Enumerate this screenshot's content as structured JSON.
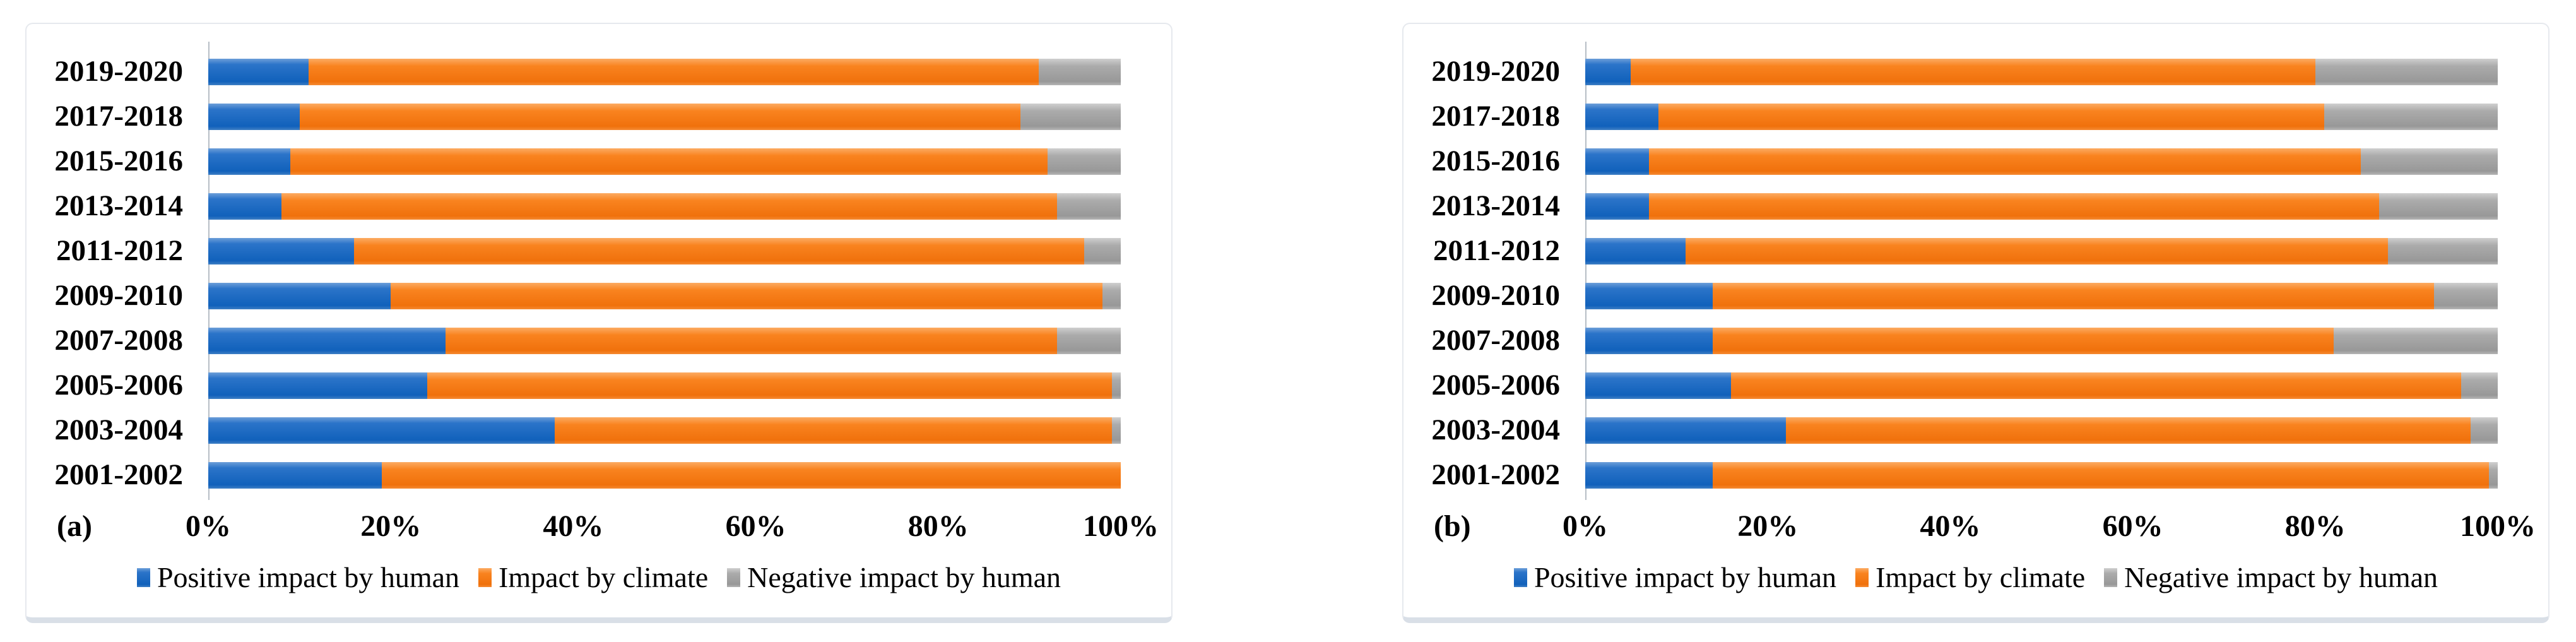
{
  "colors": {
    "positive_impact_by_human": "#1566c0",
    "impact_by_climate": "#f87c1e",
    "negative_impact_by_human": "#a6a6a6"
  },
  "chart_data": [
    {
      "type": "bar",
      "orientation": "horizontal",
      "stacked": true,
      "panel_label": "(a)",
      "title": "",
      "xlabel": "",
      "ylabel": "",
      "xlim": [
        0,
        100
      ],
      "grid": false,
      "legend_position": "bottom",
      "x_ticks": [
        "0%",
        "20%",
        "40%",
        "60%",
        "80%",
        "100%"
      ],
      "categories": [
        "2019-2020",
        "2017-2018",
        "2015-2016",
        "2013-2014",
        "2011-2012",
        "2009-2010",
        "2007-2008",
        "2005-2006",
        "2003-2004",
        "2001-2002"
      ],
      "series": [
        {
          "name": "Positive impact by human",
          "color": "#1566c0",
          "values": [
            11,
            10,
            9,
            8,
            16,
            20,
            26,
            24,
            38,
            19
          ]
        },
        {
          "name": "Impact by climate",
          "color": "#f87c1e",
          "values": [
            80,
            79,
            83,
            85,
            80,
            78,
            67,
            75,
            61,
            81
          ]
        },
        {
          "name": "Negative impact by human",
          "color": "#a6a6a6",
          "values": [
            9,
            11,
            8,
            7,
            4,
            2,
            7,
            1,
            1,
            0
          ]
        }
      ]
    },
    {
      "type": "bar",
      "orientation": "horizontal",
      "stacked": true,
      "panel_label": "(b)",
      "title": "",
      "xlabel": "",
      "ylabel": "",
      "xlim": [
        0,
        100
      ],
      "grid": false,
      "legend_position": "bottom",
      "x_ticks": [
        "0%",
        "20%",
        "40%",
        "60%",
        "80%",
        "100%"
      ],
      "categories": [
        "2019-2020",
        "2017-2018",
        "2015-2016",
        "2013-2014",
        "2011-2012",
        "2009-2010",
        "2007-2008",
        "2005-2006",
        "2003-2004",
        "2001-2002"
      ],
      "series": [
        {
          "name": "Positive impact by human",
          "color": "#1566c0",
          "values": [
            5,
            8,
            7,
            7,
            11,
            14,
            14,
            16,
            22,
            14
          ]
        },
        {
          "name": "Impact by climate",
          "color": "#f87c1e",
          "values": [
            75,
            73,
            78,
            80,
            77,
            79,
            68,
            80,
            75,
            85
          ]
        },
        {
          "name": "Negative impact by human",
          "color": "#a6a6a6",
          "values": [
            20,
            19,
            15,
            13,
            12,
            7,
            18,
            4,
            3,
            1
          ]
        }
      ]
    }
  ]
}
